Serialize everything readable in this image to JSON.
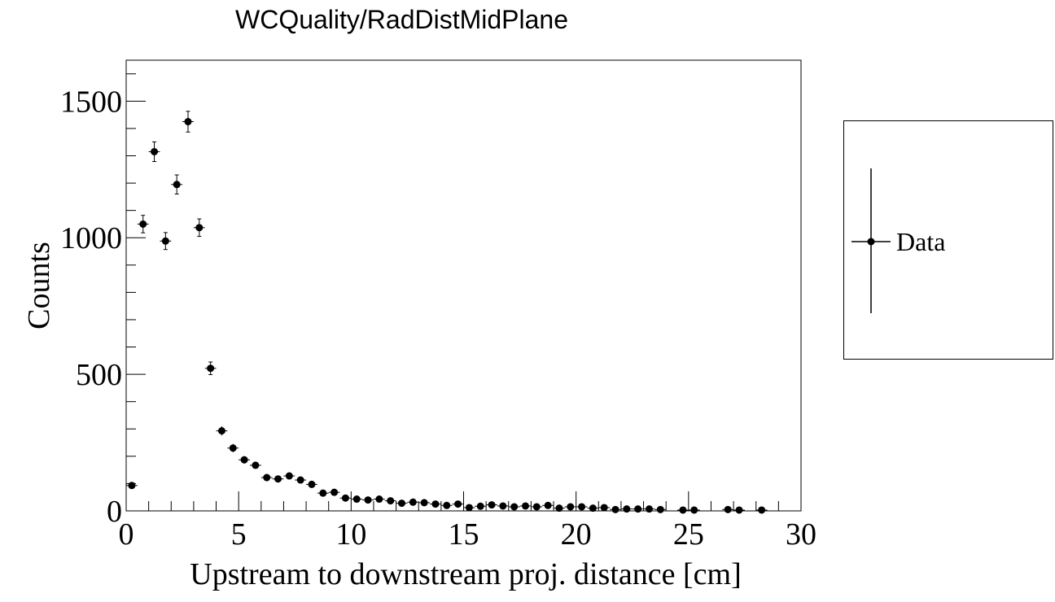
{
  "chart_data": {
    "type": "scatter",
    "title": "WCQuality/RadDistMidPlane",
    "xlabel": "Upstream to downstream proj. distance [cm]",
    "ylabel": "Counts",
    "xlim": [
      0,
      30
    ],
    "ylim": [
      0,
      1650
    ],
    "x_ticks": [
      0,
      5,
      10,
      15,
      20,
      25,
      30
    ],
    "y_ticks": [
      0,
      500,
      1000,
      1500
    ],
    "bin_width": 0.5,
    "grid": false,
    "legend_position": "right-outside",
    "marker_color": "#000000",
    "series": [
      {
        "name": "Data",
        "x": [
          0.25,
          0.75,
          1.25,
          1.75,
          2.25,
          2.75,
          3.25,
          3.75,
          4.25,
          4.75,
          5.25,
          5.75,
          6.25,
          6.75,
          7.25,
          7.75,
          8.25,
          8.75,
          9.25,
          9.75,
          10.25,
          10.75,
          11.25,
          11.75,
          12.25,
          12.75,
          13.25,
          13.75,
          14.25,
          14.75,
          15.25,
          15.75,
          16.25,
          16.75,
          17.25,
          17.75,
          18.25,
          18.75,
          19.25,
          19.75,
          20.25,
          20.75,
          21.25,
          21.75,
          22.25,
          22.75,
          23.25,
          23.75,
          24.75,
          25.25,
          26.75,
          27.25,
          28.25
        ],
        "values": [
          93,
          1050,
          1315,
          988,
          1195,
          1425,
          1037,
          522,
          293,
          230,
          187,
          167,
          122,
          117,
          128,
          113,
          97,
          65,
          68,
          47,
          43,
          40,
          43,
          37,
          28,
          32,
          30,
          25,
          20,
          25,
          12,
          17,
          22,
          18,
          15,
          18,
          15,
          20,
          10,
          15,
          15,
          10,
          12,
          5,
          7,
          7,
          7,
          5,
          3,
          3,
          5,
          3,
          3
        ],
        "errors": [
          10,
          32,
          36,
          31,
          35,
          38,
          32,
          23,
          17,
          15,
          14,
          13,
          11,
          11,
          11,
          11,
          10,
          8,
          8,
          7,
          7,
          6,
          7,
          6,
          5,
          6,
          5,
          5,
          4,
          5,
          3,
          4,
          5,
          4,
          4,
          4,
          4,
          4,
          3,
          4,
          4,
          3,
          3,
          2,
          3,
          3,
          3,
          2,
          2,
          2,
          2,
          2,
          2
        ]
      }
    ]
  }
}
